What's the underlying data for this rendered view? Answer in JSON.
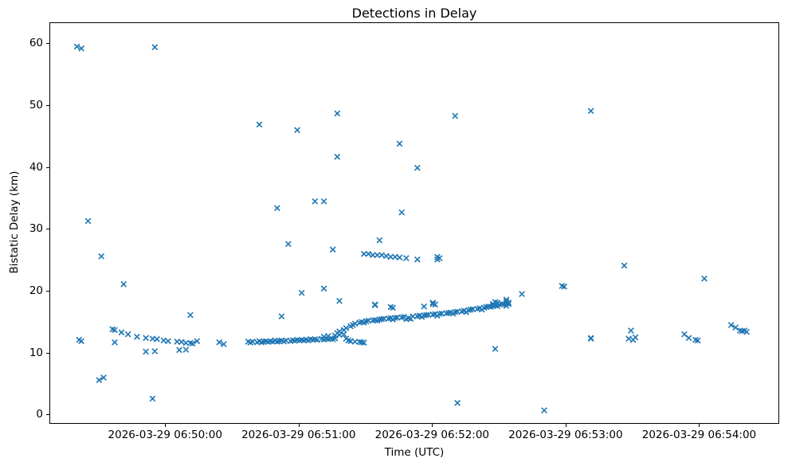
{
  "chart_data": {
    "type": "scatter",
    "title": "Detections in Delay",
    "xlabel": "Time (UTC)",
    "ylabel": "Bistatic Delay (km)",
    "marker": "x",
    "marker_color": "#1f77b4",
    "grid": false,
    "legend": "none",
    "xlim": [
      "06:49:08",
      "06:54:36"
    ],
    "ylim": [
      -1.5,
      63.4
    ],
    "x_ticks": [
      {
        "time": "06:50:00",
        "label": "2026-03-29 06:50:00"
      },
      {
        "time": "06:51:00",
        "label": "2026-03-29 06:51:00"
      },
      {
        "time": "06:52:00",
        "label": "2026-03-29 06:52:00"
      },
      {
        "time": "06:53:00",
        "label": "2026-03-29 06:53:00"
      },
      {
        "time": "06:54:00",
        "label": "2026-03-29 06:54:00"
      }
    ],
    "y_ticks": [
      0,
      10,
      20,
      30,
      40,
      50,
      60
    ],
    "x_date": "2026-03-29",
    "points": [
      [
        "06:49:20",
        59.6
      ],
      [
        "06:49:22",
        59.3
      ],
      [
        "06:49:55",
        59.5
      ],
      [
        "06:49:25",
        31.4
      ],
      [
        "06:49:31",
        25.7
      ],
      [
        "06:49:41",
        21.2
      ],
      [
        "06:49:30",
        5.7
      ],
      [
        "06:49:32",
        6.1
      ],
      [
        "06:49:54",
        2.7
      ],
      [
        "06:49:21",
        12.2
      ],
      [
        "06:49:22",
        12.0
      ],
      [
        "06:49:36",
        13.9
      ],
      [
        "06:49:37",
        13.8
      ],
      [
        "06:49:37",
        11.8
      ],
      [
        "06:49:40",
        13.4
      ],
      [
        "06:49:43",
        13.1
      ],
      [
        "06:49:47",
        12.7
      ],
      [
        "06:49:51",
        12.5
      ],
      [
        "06:49:54",
        12.4
      ],
      [
        "06:49:56",
        12.3
      ],
      [
        "06:49:59",
        12.1
      ],
      [
        "06:50:01",
        12.0
      ],
      [
        "06:50:05",
        11.9
      ],
      [
        "06:50:07",
        11.85
      ],
      [
        "06:50:09",
        11.7
      ],
      [
        "06:50:11",
        11.7
      ],
      [
        "06:50:12",
        11.6
      ],
      [
        "06:50:14",
        12.0
      ],
      [
        "06:49:51",
        10.3
      ],
      [
        "06:49:55",
        10.35
      ],
      [
        "06:50:06",
        10.55
      ],
      [
        "06:50:09",
        10.6
      ],
      [
        "06:50:11",
        16.2
      ],
      [
        "06:50:24",
        11.8
      ],
      [
        "06:50:26",
        11.5
      ],
      [
        "06:50:37",
        11.9
      ],
      [
        "06:50:38",
        11.75
      ],
      [
        "06:50:39",
        11.9
      ],
      [
        "06:50:41",
        11.8
      ],
      [
        "06:50:42",
        12.0
      ],
      [
        "06:50:43",
        11.8
      ],
      [
        "06:50:44",
        11.9
      ],
      [
        "06:50:45",
        12.0
      ],
      [
        "06:50:46",
        11.85
      ],
      [
        "06:50:47",
        12.0
      ],
      [
        "06:50:48",
        11.9
      ],
      [
        "06:50:49",
        12.1
      ],
      [
        "06:50:50",
        11.9
      ],
      [
        "06:50:51",
        12.0
      ],
      [
        "06:50:52",
        12.1
      ],
      [
        "06:50:53",
        11.95
      ],
      [
        "06:50:54",
        12.1
      ],
      [
        "06:50:56",
        12.0
      ],
      [
        "06:50:57",
        12.15
      ],
      [
        "06:50:58",
        12.05
      ],
      [
        "06:50:59",
        12.2
      ],
      [
        "06:51:00",
        12.1
      ],
      [
        "06:51:01",
        12.2
      ],
      [
        "06:51:02",
        12.1
      ],
      [
        "06:51:03",
        12.25
      ],
      [
        "06:51:04",
        12.1
      ],
      [
        "06:51:05",
        12.3
      ],
      [
        "06:51:06",
        12.2
      ],
      [
        "06:51:07",
        12.3
      ],
      [
        "06:51:08",
        12.2
      ],
      [
        "06:51:10",
        12.35
      ],
      [
        "06:51:11",
        12.25
      ],
      [
        "06:51:12",
        12.4
      ],
      [
        "06:51:13",
        12.3
      ],
      [
        "06:51:14",
        12.4
      ],
      [
        "06:51:15",
        12.3
      ],
      [
        "06:51:16",
        12.45
      ],
      [
        "06:51:11",
        12.7
      ],
      [
        "06:51:13",
        12.8
      ],
      [
        "06:51:16",
        12.9
      ],
      [
        "06:51:18",
        13.0
      ],
      [
        "06:51:20",
        13.1
      ],
      [
        "06:51:21",
        12.4
      ],
      [
        "06:51:22",
        12.1
      ],
      [
        "06:51:23",
        12.0
      ],
      [
        "06:51:25",
        11.9
      ],
      [
        "06:51:27",
        11.85
      ],
      [
        "06:51:28",
        11.8
      ],
      [
        "06:51:29",
        11.75
      ],
      [
        "06:51:17",
        13.3
      ],
      [
        "06:51:18",
        13.55
      ],
      [
        "06:51:20",
        13.8
      ],
      [
        "06:51:21",
        14.1
      ],
      [
        "06:51:23",
        14.4
      ],
      [
        "06:51:24",
        14.6
      ],
      [
        "06:51:25",
        14.8
      ],
      [
        "06:51:27",
        15.0
      ],
      [
        "06:51:28",
        15.1
      ],
      [
        "06:51:30",
        15.2
      ],
      [
        "06:51:31",
        15.3
      ],
      [
        "06:51:33",
        15.35
      ],
      [
        "06:51:34",
        15.4
      ],
      [
        "06:51:36",
        15.5
      ],
      [
        "06:51:37",
        15.55
      ],
      [
        "06:51:38",
        15.6
      ],
      [
        "06:51:40",
        15.65
      ],
      [
        "06:51:41",
        15.7
      ],
      [
        "06:51:43",
        15.75
      ],
      [
        "06:51:44",
        15.8
      ],
      [
        "06:51:46",
        15.85
      ],
      [
        "06:51:47",
        15.9
      ],
      [
        "06:51:48",
        15.55
      ],
      [
        "06:51:50",
        15.6
      ],
      [
        "06:51:51",
        16.0
      ],
      [
        "06:51:53",
        16.05
      ],
      [
        "06:51:54",
        16.1
      ],
      [
        "06:51:56",
        16.15
      ],
      [
        "06:51:57",
        16.2
      ],
      [
        "06:51:58",
        16.25
      ],
      [
        "06:52:00",
        16.3
      ],
      [
        "06:52:01",
        16.35
      ],
      [
        "06:52:03",
        16.4
      ],
      [
        "06:52:04",
        16.45
      ],
      [
        "06:52:06",
        16.5
      ],
      [
        "06:52:07",
        16.55
      ],
      [
        "06:52:08",
        16.6
      ],
      [
        "06:52:10",
        16.7
      ],
      [
        "06:52:11",
        16.75
      ],
      [
        "06:52:13",
        16.8
      ],
      [
        "06:52:14",
        16.9
      ],
      [
        "06:52:16",
        17.0
      ],
      [
        "06:52:17",
        17.1
      ],
      [
        "06:52:18",
        17.15
      ],
      [
        "06:52:20",
        17.2
      ],
      [
        "06:52:21",
        17.3
      ],
      [
        "06:52:23",
        17.4
      ],
      [
        "06:52:24",
        17.5
      ],
      [
        "06:52:25",
        17.6
      ],
      [
        "06:52:27",
        17.7
      ],
      [
        "06:52:28",
        17.8
      ],
      [
        "06:52:30",
        17.9
      ],
      [
        "06:52:31",
        18.0
      ],
      [
        "06:52:33",
        18.1
      ],
      [
        "06:52:34",
        18.2
      ],
      [
        "06:51:29",
        15.0
      ],
      [
        "06:51:35",
        15.3
      ],
      [
        "06:51:42",
        15.5
      ],
      [
        "06:51:49",
        15.7
      ],
      [
        "06:51:55",
        15.9
      ],
      [
        "06:52:02",
        16.1
      ],
      [
        "06:52:09",
        16.45
      ],
      [
        "06:52:15",
        16.7
      ],
      [
        "06:52:22",
        17.1
      ],
      [
        "06:52:26",
        17.55
      ],
      [
        "06:52:29",
        17.65
      ],
      [
        "06:52:32",
        17.95
      ],
      [
        "06:51:29",
        26.1
      ],
      [
        "06:51:31",
        26.1
      ],
      [
        "06:51:33",
        25.9
      ],
      [
        "06:51:35",
        25.9
      ],
      [
        "06:51:37",
        25.9
      ],
      [
        "06:51:39",
        25.75
      ],
      [
        "06:51:41",
        25.6
      ],
      [
        "06:51:43",
        25.6
      ],
      [
        "06:51:45",
        25.5
      ],
      [
        "06:51:48",
        25.4
      ],
      [
        "06:51:53",
        25.2
      ],
      [
        "06:52:02",
        25.6
      ],
      [
        "06:52:02",
        25.2
      ],
      [
        "06:52:03",
        25.4
      ],
      [
        "06:50:52",
        16.0
      ],
      [
        "06:51:01",
        19.8
      ],
      [
        "06:51:11",
        20.5
      ],
      [
        "06:51:18",
        18.5
      ],
      [
        "06:51:34",
        17.9
      ],
      [
        "06:51:34",
        17.8
      ],
      [
        "06:51:41",
        17.5
      ],
      [
        "06:51:42",
        17.4
      ],
      [
        "06:51:56",
        17.6
      ],
      [
        "06:52:00",
        18.2
      ],
      [
        "06:52:00",
        18.0
      ],
      [
        "06:52:01",
        17.9
      ],
      [
        "06:52:27",
        18.0
      ],
      [
        "06:52:28",
        18.3
      ],
      [
        "06:52:29",
        18.2
      ],
      [
        "06:52:33",
        18.4
      ],
      [
        "06:52:33",
        18.7
      ],
      [
        "06:52:34",
        18.0
      ],
      [
        "06:52:33",
        17.7
      ],
      [
        "06:52:40",
        19.6
      ],
      [
        "06:52:58",
        20.9
      ],
      [
        "06:52:59",
        20.8
      ],
      [
        "06:52:28",
        10.75
      ],
      [
        "06:52:11",
        2.0
      ],
      [
        "06:52:50",
        0.8
      ],
      [
        "06:50:42",
        47.0
      ],
      [
        "06:50:59",
        46.1
      ],
      [
        "06:50:50",
        33.5
      ],
      [
        "06:50:55",
        27.7
      ],
      [
        "06:51:07",
        34.6
      ],
      [
        "06:51:11",
        34.6
      ],
      [
        "06:51:15",
        26.8
      ],
      [
        "06:51:17",
        41.8
      ],
      [
        "06:51:17",
        48.8
      ],
      [
        "06:51:36",
        28.3
      ],
      [
        "06:51:45",
        43.9
      ],
      [
        "06:51:46",
        32.8
      ],
      [
        "06:51:53",
        40.0
      ],
      [
        "06:52:10",
        48.4
      ],
      [
        "06:53:11",
        49.2
      ],
      [
        "06:53:11",
        12.5
      ],
      [
        "06:53:11",
        12.4
      ],
      [
        "06:53:26",
        24.2
      ],
      [
        "06:53:28",
        12.4
      ],
      [
        "06:53:29",
        13.7
      ],
      [
        "06:53:30",
        12.2
      ],
      [
        "06:53:31",
        12.6
      ],
      [
        "06:53:53",
        13.1
      ],
      [
        "06:53:55",
        12.5
      ],
      [
        "06:53:58",
        12.2
      ],
      [
        "06:53:59",
        12.1
      ],
      [
        "06:54:02",
        22.1
      ],
      [
        "06:54:14",
        14.6
      ],
      [
        "06:54:16",
        14.2
      ],
      [
        "06:54:18",
        13.7
      ],
      [
        "06:54:19",
        13.6
      ],
      [
        "06:54:20",
        13.7
      ],
      [
        "06:54:21",
        13.5
      ]
    ]
  }
}
